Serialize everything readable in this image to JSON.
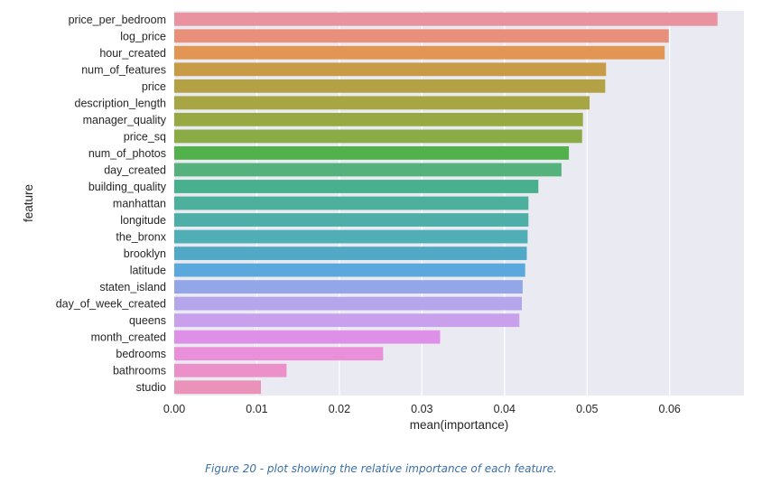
{
  "chart_data": {
    "type": "bar",
    "orientation": "horizontal",
    "categories": [
      "price_per_bedroom",
      "log_price",
      "hour_created",
      "num_of_features",
      "price",
      "description_length",
      "manager_quality",
      "price_sq",
      "num_of_photos",
      "day_created",
      "building_quality",
      "manhattan",
      "longitude",
      "the_bronx",
      "brooklyn",
      "latitude",
      "staten_island",
      "day_of_week_created",
      "queens",
      "month_created",
      "bedrooms",
      "bathrooms",
      "studio"
    ],
    "values": [
      0.0658,
      0.0599,
      0.0594,
      0.0523,
      0.0522,
      0.0503,
      0.0495,
      0.0494,
      0.0478,
      0.0469,
      0.0441,
      0.0429,
      0.0429,
      0.0428,
      0.0427,
      0.0425,
      0.0422,
      0.0421,
      0.0418,
      0.0322,
      0.0253,
      0.0136,
      0.0105
    ],
    "colors": [
      "#e8939f",
      "#e8907a",
      "#e39553",
      "#c89c46",
      "#b5a145",
      "#a8a544",
      "#98a944",
      "#8aab45",
      "#52b14a",
      "#55b27c",
      "#48b08c",
      "#4cb09c",
      "#4eafa8",
      "#50aeb6",
      "#52a9c6",
      "#5aa8dc",
      "#93a7e8",
      "#b5a6ec",
      "#c8a0ec",
      "#de90e8",
      "#ea8fd9",
      "#eb90c8",
      "#eb92b8"
    ],
    "xlabel": "mean(importance)",
    "ylabel": "feature",
    "xlim": [
      0,
      0.069
    ],
    "xticks": [
      0.0,
      0.01,
      0.02,
      0.03,
      0.04,
      0.05,
      0.06
    ],
    "xtick_labels": [
      "0.00",
      "0.01",
      "0.02",
      "0.03",
      "0.04",
      "0.05",
      "0.06"
    ],
    "grid": true,
    "background": "#eaeaf2"
  },
  "caption": "Figure 20 - plot showing the relative importance of each feature."
}
